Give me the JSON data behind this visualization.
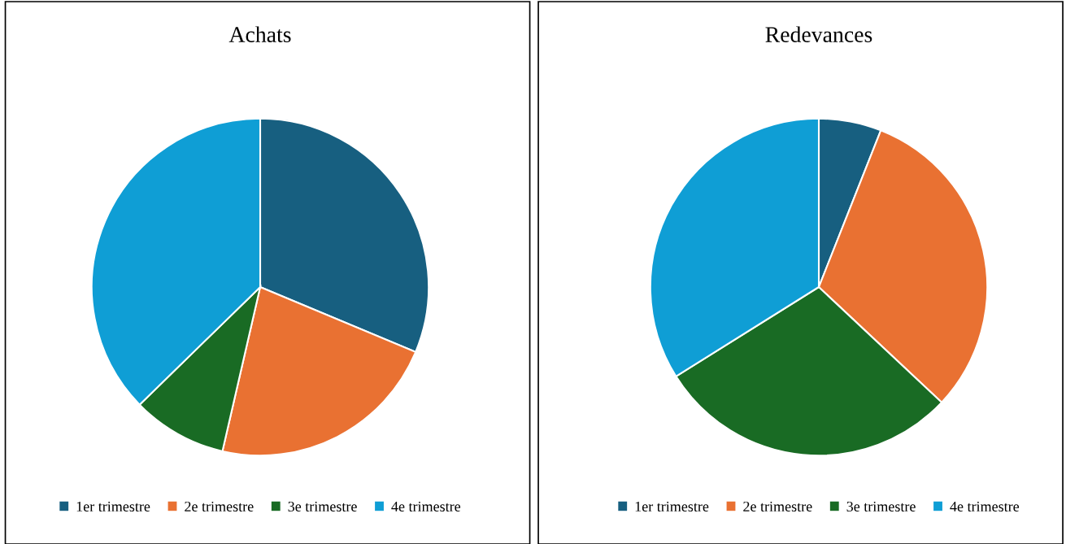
{
  "chart_data": [
    {
      "type": "pie",
      "title": "Achats",
      "categories": [
        "1er trimestre",
        "2e trimestre",
        "3e trimestre",
        "4e trimestre"
      ],
      "values": [
        31.3,
        22.3,
        9.1,
        37.3
      ],
      "colors": [
        "#175f80",
        "#e97132",
        "#196b24",
        "#0f9ed5"
      ],
      "legend": "bottom"
    },
    {
      "type": "pie",
      "title": "Redevances",
      "categories": [
        "1er trimestre",
        "2e trimestre",
        "3e trimestre",
        "4e trimestre"
      ],
      "values": [
        6.0,
        31.0,
        29.1,
        33.9
      ],
      "colors": [
        "#175f80",
        "#e97132",
        "#196b24",
        "#0f9ed5"
      ],
      "legend": "bottom"
    }
  ]
}
